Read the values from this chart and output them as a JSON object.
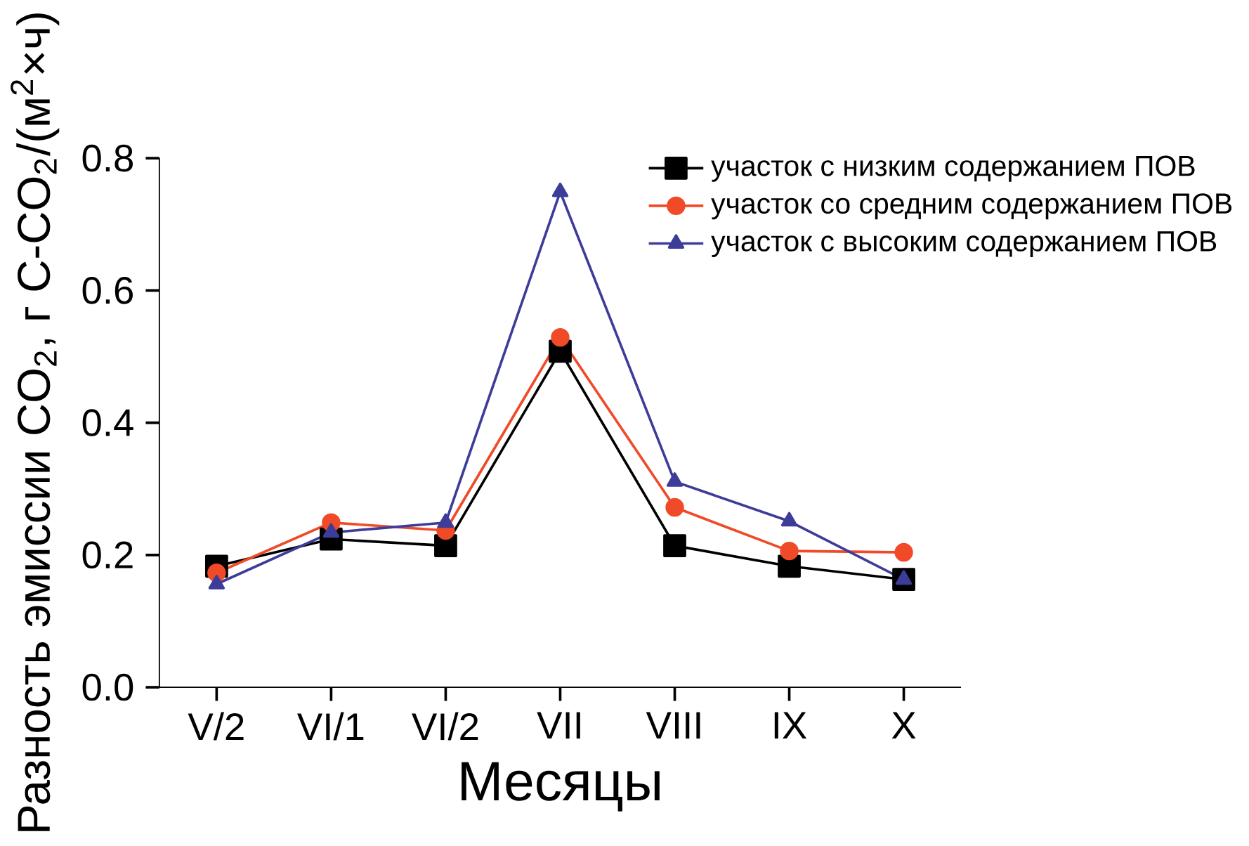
{
  "chart_data": {
    "type": "line",
    "xlabel": "Месяцы",
    "ylabel": "Разность эмиссии CO$_{2}$, г C-CO$_{2}$/(м$^{2}$×ч)",
    "categories": [
      "V/2",
      "VI/1",
      "VI/2",
      "VII",
      "VIII",
      "IX",
      "X"
    ],
    "ylim": [
      0,
      0.8
    ],
    "yticks": [
      {
        "value": 0,
        "label": "0.0"
      },
      {
        "value": 0.2,
        "label": "0.2"
      },
      {
        "value": 0.4,
        "label": "0.4"
      },
      {
        "value": 0.6,
        "label": "0.6"
      },
      {
        "value": 0.8,
        "label": "0.8"
      }
    ],
    "legend": "top right",
    "grid": false,
    "series": [
      {
        "name": "участок с низким содержанием ПОВ",
        "color": "#000000",
        "marker": "square",
        "values": [
          0.183,
          0.224,
          0.214,
          0.508,
          0.214,
          0.183,
          0.163
        ]
      },
      {
        "name": "участок со средним содержанием ПОВ",
        "color": "#f04a28",
        "marker": "circle",
        "values": [
          0.173,
          0.249,
          0.237,
          0.529,
          0.272,
          0.206,
          0.204
        ]
      },
      {
        "name": "участок с высоким содержанием ПОВ",
        "color": "#3d3d99",
        "marker": "triangle",
        "values": [
          0.156,
          0.234,
          0.249,
          0.749,
          0.311,
          0.251,
          0.163
        ]
      }
    ]
  }
}
